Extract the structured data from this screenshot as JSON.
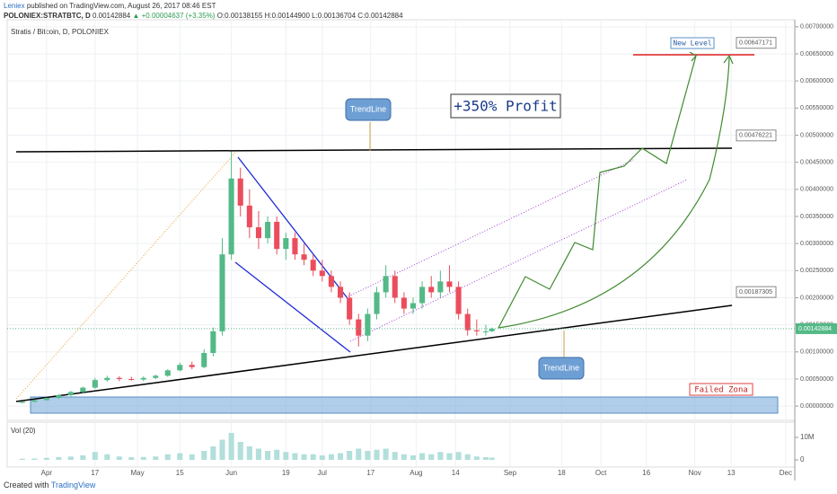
{
  "header": {
    "author": "Leniex",
    "published": "published on TradingView.com, August 26, 2017 08:46 EST",
    "symbol": "POLONIEX:STRATBTC, D",
    "price": "0.00142884",
    "change": "▲ +0.00004637 (+3.35%)",
    "ohlc": "O:0.00138155 H:0.00144900 L:0.00136704 C:0.00142884"
  },
  "footer": {
    "created": "Created with",
    "brand": "TradingView"
  },
  "chart_data": {
    "type": "candlestick",
    "title": "Stratis / Bitcoin, D, POLONIEX",
    "x": [
      "Mar 24",
      "Mar 28",
      "Apr 1",
      "Apr 5",
      "Apr 9",
      "Apr 13",
      "Apr 17",
      "Apr 21",
      "Apr 25",
      "Apr 29",
      "May 3",
      "May 7",
      "May 11",
      "May 15",
      "May 19",
      "May 23",
      "May 26",
      "May 29",
      "Jun 1",
      "Jun 4",
      "Jun 7",
      "Jun 10",
      "Jun 13",
      "Jun 16",
      "Jun 19",
      "Jun 22",
      "Jun 25",
      "Jun 28",
      "Jul 1",
      "Jul 4",
      "Jul 7",
      "Jul 10",
      "Jul 13",
      "Jul 16",
      "Jul 19",
      "Jul 22",
      "Jul 25",
      "Jul 28",
      "Jul 31",
      "Aug 3",
      "Aug 6",
      "Aug 9",
      "Aug 12",
      "Aug 15",
      "Aug 18",
      "Aug 21",
      "Aug 24",
      "Aug 26"
    ],
    "open": [
      6e-05,
      8e-05,
      0.00011,
      0.00015,
      0.0002,
      0.00026,
      0.00034,
      0.00048,
      0.00052,
      0.0005,
      0.00049,
      0.00052,
      0.00056,
      0.00066,
      0.00076,
      0.00072,
      0.00098,
      0.00138,
      0.0028,
      0.0042,
      0.0037,
      0.0033,
      0.0031,
      0.0034,
      0.0029,
      0.0031,
      0.0028,
      0.0027,
      0.0025,
      0.0024,
      0.0022,
      0.002,
      0.0016,
      0.0013,
      0.0017,
      0.0021,
      0.0024,
      0.002,
      0.0018,
      0.0019,
      0.0022,
      0.0021,
      0.0023,
      0.0022,
      0.0017,
      0.0014,
      0.00138,
      0.00138155
    ],
    "high": [
      9e-05,
      0.00012,
      0.00016,
      0.00022,
      0.00028,
      0.00036,
      0.00052,
      0.00056,
      0.00055,
      0.00054,
      0.00055,
      0.00058,
      0.00068,
      0.0008,
      0.00082,
      0.00105,
      0.00145,
      0.0031,
      0.0047,
      0.0044,
      0.004,
      0.0036,
      0.0035,
      0.0035,
      0.0032,
      0.0032,
      0.003,
      0.0028,
      0.0027,
      0.0025,
      0.0023,
      0.0021,
      0.0017,
      0.0018,
      0.0022,
      0.0026,
      0.0025,
      0.0021,
      0.002,
      0.0023,
      0.0024,
      0.0025,
      0.0026,
      0.0023,
      0.0018,
      0.0016,
      0.0015,
      0.001449
    ],
    "low": [
      5e-05,
      7e-05,
      0.0001,
      0.00014,
      0.00018,
      0.00024,
      0.00032,
      0.00045,
      0.00046,
      0.00047,
      0.00046,
      0.0005,
      0.00054,
      0.00064,
      0.00068,
      0.0007,
      0.00092,
      0.0013,
      0.0027,
      0.0035,
      0.0031,
      0.0029,
      0.003,
      0.0028,
      0.0027,
      0.0027,
      0.0026,
      0.0024,
      0.0023,
      0.0021,
      0.0019,
      0.0015,
      0.0011,
      0.0012,
      0.0016,
      0.002,
      0.0019,
      0.0017,
      0.0017,
      0.0018,
      0.002,
      0.002,
      0.0021,
      0.0016,
      0.0013,
      0.0013,
      0.0013,
      0.00136704
    ],
    "close": [
      8e-05,
      0.00011,
      0.00015,
      0.0002,
      0.00026,
      0.00034,
      0.00048,
      0.00052,
      0.0005,
      0.00049,
      0.00052,
      0.00056,
      0.00066,
      0.00076,
      0.00072,
      0.00098,
      0.00138,
      0.0028,
      0.0042,
      0.0037,
      0.0033,
      0.0031,
      0.0034,
      0.0029,
      0.0031,
      0.0028,
      0.0027,
      0.0025,
      0.0024,
      0.0022,
      0.002,
      0.0016,
      0.0013,
      0.0017,
      0.0021,
      0.0024,
      0.002,
      0.0018,
      0.0019,
      0.0022,
      0.0021,
      0.0023,
      0.0022,
      0.0017,
      0.0014,
      0.00138,
      0.00138,
      0.00142884
    ],
    "volume": [
      500000,
      600000,
      900000,
      1200000,
      1500000,
      2000000,
      3500000,
      2500000,
      1500000,
      1200000,
      1300000,
      1500000,
      2500000,
      3000000,
      2500000,
      4000000,
      6000000,
      9000000,
      12000000,
      8000000,
      6000000,
      5000000,
      4000000,
      4500000,
      3500000,
      3000000,
      2500000,
      2500000,
      2000000,
      2500000,
      3000000,
      4000000,
      5000000,
      4000000,
      4500000,
      5000000,
      3500000,
      2500000,
      2000000,
      3000000,
      2500000,
      3500000,
      3000000,
      3500000,
      2500000,
      1500000,
      1200000,
      1000000
    ],
    "up_color": "#53b987",
    "down_color": "#eb4d5c",
    "volume_color": "#b2dfdb",
    "xlim": [
      "Mar 19",
      "Dec 4"
    ],
    "xticks": [
      {
        "value": "Apr 1",
        "label": "Apr"
      },
      {
        "value": "Apr 17",
        "label": "17"
      },
      {
        "value": "May 1",
        "label": "May"
      },
      {
        "value": "May 15",
        "label": "15"
      },
      {
        "value": "Jun 1",
        "label": "Jun"
      },
      {
        "value": "Jun 19",
        "label": "19"
      },
      {
        "value": "Jul 1",
        "label": "Jul"
      },
      {
        "value": "Jul 17",
        "label": "17"
      },
      {
        "value": "Aug 1",
        "label": "Aug"
      },
      {
        "value": "Aug 14",
        "label": "14"
      },
      {
        "value": "Sep 1",
        "label": "Sep"
      },
      {
        "value": "Sep 18",
        "label": "18"
      },
      {
        "value": "Oct 1",
        "label": "Oct"
      },
      {
        "value": "Oct 16",
        "label": "16"
      },
      {
        "value": "Nov 1",
        "label": "Nov"
      },
      {
        "value": "Nov 13",
        "label": "13"
      },
      {
        "value": "Dec 1",
        "label": "Dec"
      }
    ],
    "ylim": [
      -0.00023,
      0.00708
    ],
    "yticks": [
      {
        "value": 0,
        "label": "0.00000000"
      },
      {
        "value": 0.0005,
        "label": "0.00050000"
      },
      {
        "value": 0.001,
        "label": "0.00100000"
      },
      {
        "value": 0.0015,
        "label": "0.00150000"
      },
      {
        "value": 0.002,
        "label": "0.00200000"
      },
      {
        "value": 0.0025,
        "label": "0.00250000"
      },
      {
        "value": 0.003,
        "label": "0.00300000"
      },
      {
        "value": 0.0035,
        "label": "0.00350000"
      },
      {
        "value": 0.004,
        "label": "0.00400000"
      },
      {
        "value": 0.0045,
        "label": "0.00450000"
      },
      {
        "value": 0.005,
        "label": "0.00500000"
      },
      {
        "value": 0.0055,
        "label": "0.00550000"
      },
      {
        "value": 0.006,
        "label": "0.00600000"
      },
      {
        "value": 0.0065,
        "label": "0.00650000"
      },
      {
        "value": 0.007,
        "label": "0.00700000"
      }
    ],
    "volume_label": "Vol (20)",
    "volume_ylim": [
      0,
      18000000
    ],
    "volume_ticks": [
      0,
      {
        "value": 10000000,
        "label": "10M"
      }
    ],
    "level_labels": [
      0.00647171,
      0.00476221,
      0.00187305
    ],
    "annotations": {
      "profit": "+350% Profit",
      "trend_top": "TrendLine",
      "trend_bottom": "TrendLine",
      "new_level": "New Level",
      "failed": "Failed Zona"
    },
    "grid": true
  }
}
